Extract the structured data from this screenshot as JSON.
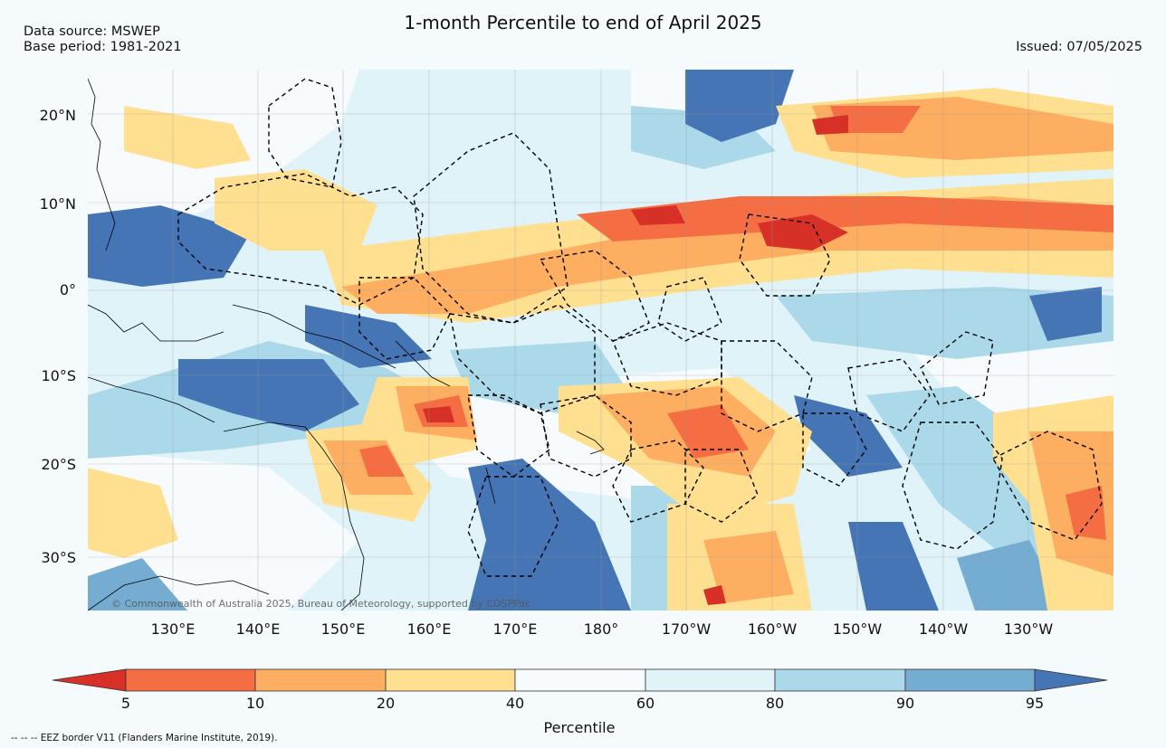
{
  "title": "1-month Percentile to end of April 2025",
  "data_source": "Data source: MSWEP",
  "base_period": "Base period: 1981-2021",
  "issued": "Issued: 07/05/2025",
  "copyright": "© Commonwealth of Australia 2025, Bureau of Meteorology, supported by COSPPac",
  "eez_note": "--  --  -- EEZ border V11 (Flanders Marine Institute, 2019).",
  "lat_labels": [
    "20°N",
    "10°N",
    "0°",
    "10°S",
    "20°S",
    "30°S"
  ],
  "lon_labels": [
    "130°E",
    "140°E",
    "150°E",
    "160°E",
    "170°E",
    "180°",
    "170°W",
    "160°W",
    "150°W",
    "140°W",
    "130°W"
  ],
  "colorbar": {
    "label": "Percentile",
    "ticks": [
      "5",
      "10",
      "20",
      "40",
      "60",
      "80",
      "90",
      "95"
    ],
    "colors": [
      "#d73027",
      "#f46d43",
      "#fdae61",
      "#fee090",
      "#f7fbfd",
      "#e0f3f8",
      "#abd9e9",
      "#74add1",
      "#4575b4"
    ]
  }
}
